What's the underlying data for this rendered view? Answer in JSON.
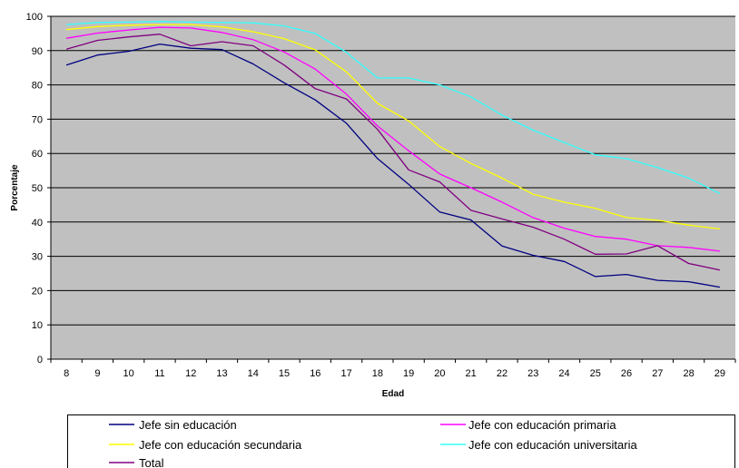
{
  "chart_data": {
    "type": "line",
    "xlabel": "Edad",
    "ylabel": "Porcentaje",
    "ylim": [
      0,
      100
    ],
    "y_ticks": [
      "0",
      "10",
      "20",
      "30",
      "40",
      "50",
      "60",
      "70",
      "80",
      "90",
      "100"
    ],
    "grid": "horizontal",
    "plot_background": "#c0c0c0",
    "x": [
      "8",
      "9",
      "10",
      "11",
      "12",
      "13",
      "14",
      "15",
      "16",
      "17",
      "18",
      "19",
      "20",
      "21",
      "22",
      "23",
      "24",
      "25",
      "26",
      "27",
      "28",
      "29"
    ],
    "series": [
      {
        "name": "Jefe sin educación",
        "color": "#000080",
        "values": [
          85.8,
          88.7,
          89.8,
          91.9,
          90.7,
          90.3,
          86.1,
          80.6,
          75.6,
          68.8,
          58.5,
          51.0,
          42.9,
          40.6,
          33.0,
          30.3,
          28.5,
          24.1,
          24.7,
          23.0,
          22.6,
          21.0
        ]
      },
      {
        "name": "Jefe con educación primaria",
        "color": "#ff00ff",
        "values": [
          93.6,
          95.1,
          96.0,
          96.8,
          96.6,
          95.3,
          93.2,
          89.6,
          84.6,
          77.3,
          68.0,
          60.8,
          54.0,
          50.0,
          45.8,
          41.3,
          38.2,
          35.8,
          35.0,
          33.1,
          32.6,
          31.5
        ]
      },
      {
        "name": "Jefe con educación secundaria",
        "color": "#ffff00",
        "values": [
          96.1,
          97.0,
          97.4,
          97.6,
          97.6,
          96.9,
          95.5,
          93.5,
          90.2,
          83.8,
          74.6,
          69.5,
          62.0,
          57.1,
          52.8,
          48.1,
          45.8,
          44.0,
          41.3,
          40.5,
          39.1,
          38.0
        ]
      },
      {
        "name": "Jefe con educación universitaria",
        "color": "#33ffff",
        "values": [
          97.6,
          98.2,
          98.3,
          98.5,
          98.3,
          98.2,
          98.1,
          97.2,
          95.0,
          89.5,
          82.0,
          82.0,
          80.0,
          76.5,
          71.2,
          66.8,
          63.2,
          59.6,
          58.5,
          55.9,
          52.8,
          48.3
        ]
      },
      {
        "name": "Total",
        "color": "#800080",
        "values": [
          90.4,
          93.0,
          94.0,
          94.8,
          91.4,
          92.6,
          91.4,
          85.8,
          78.9,
          75.9,
          67.0,
          55.2,
          51.7,
          43.4,
          40.9,
          38.5,
          35.0,
          30.6,
          30.7,
          33.1,
          27.9,
          26.0
        ]
      }
    ]
  }
}
